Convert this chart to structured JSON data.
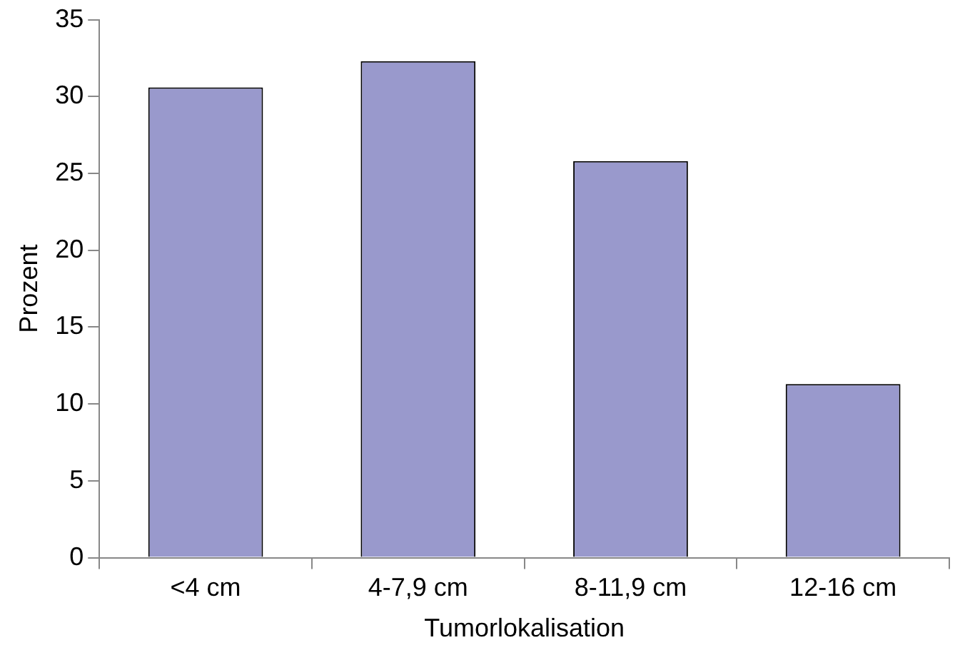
{
  "chart_data": {
    "type": "bar",
    "xlabel": "Tumorlokalisation",
    "ylabel": "Prozent",
    "categories": [
      "<4 cm",
      "4-7,9 cm",
      "8-11,9 cm",
      "12-16 cm"
    ],
    "values": [
      30.6,
      32.3,
      25.8,
      11.3
    ],
    "color": "#9999cc",
    "ylim": [
      0,
      35
    ],
    "yticks": [
      0,
      5,
      10,
      15,
      20,
      25,
      30,
      35
    ],
    "grid": false,
    "legend": false
  }
}
